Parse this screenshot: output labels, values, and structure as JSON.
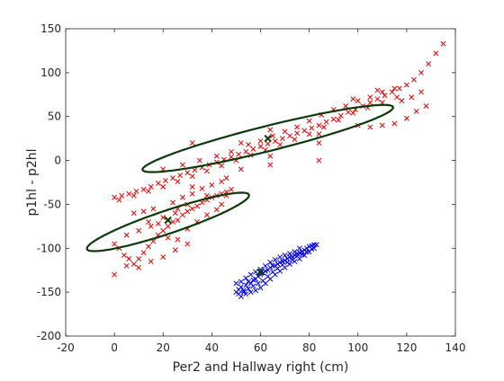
{
  "chart_data": {
    "type": "scatter",
    "title": "",
    "xlabel": "Per2 and Hallway right (cm)",
    "ylabel": "p1hl - p2hl",
    "xlim": [
      -20,
      140
    ],
    "ylim": [
      -200,
      150
    ],
    "xticks": [
      -20,
      0,
      20,
      40,
      60,
      80,
      100,
      120,
      140
    ],
    "yticks": [
      150,
      100,
      50,
      0,
      -50,
      -100,
      -150,
      -200
    ],
    "xtick_labels": [
      "-20",
      "0",
      "20",
      "40",
      "60",
      "80",
      "100",
      "120",
      "140"
    ],
    "ytick_labels": [
      "150",
      "100",
      "50",
      "0",
      "-50",
      "-100",
      "-150",
      "-200"
    ],
    "grid": false,
    "legend": "none",
    "colors": {
      "cluster_red": "#e00000",
      "cluster_blue": "#0000e0",
      "ellipse": "#0a3a0a",
      "axes": "#262626"
    },
    "series": [
      {
        "marker": "x",
        "color": "#e00000",
        "points": [
          [
            0,
            -42
          ],
          [
            3,
            -40
          ],
          [
            6,
            -38
          ],
          [
            9,
            -35
          ],
          [
            12,
            -33
          ],
          [
            15,
            -30
          ],
          [
            18,
            -26
          ],
          [
            21,
            -23
          ],
          [
            24,
            -20
          ],
          [
            27,
            -17
          ],
          [
            30,
            -14
          ],
          [
            33,
            -11
          ],
          [
            36,
            -8
          ],
          [
            39,
            -5
          ],
          [
            42,
            -2
          ],
          [
            45,
            1
          ],
          [
            48,
            4
          ],
          [
            51,
            7
          ],
          [
            54,
            10
          ],
          [
            57,
            13
          ],
          [
            60,
            16
          ],
          [
            63,
            19
          ],
          [
            66,
            22
          ],
          [
            69,
            25
          ],
          [
            72,
            28
          ],
          [
            75,
            31
          ],
          [
            78,
            34
          ],
          [
            81,
            37
          ],
          [
            84,
            40
          ],
          [
            87,
            44
          ],
          [
            90,
            47
          ],
          [
            93,
            51
          ],
          [
            96,
            55
          ],
          [
            99,
            58
          ],
          [
            102,
            62
          ],
          [
            105,
            66
          ],
          [
            108,
            70
          ],
          [
            111,
            74
          ],
          [
            114,
            78
          ],
          [
            117,
            82
          ],
          [
            120,
            86
          ],
          [
            123,
            92
          ],
          [
            126,
            100
          ],
          [
            129,
            110
          ],
          [
            132,
            122
          ],
          [
            135,
            133
          ],
          [
            2,
            -45
          ],
          [
            8,
            -40
          ],
          [
            14,
            -35
          ],
          [
            20,
            -30
          ],
          [
            26,
            -24
          ],
          [
            32,
            -18
          ],
          [
            38,
            -12
          ],
          [
            44,
            -6
          ],
          [
            50,
            0
          ],
          [
            56,
            6
          ],
          [
            62,
            12
          ],
          [
            68,
            18
          ],
          [
            74,
            24
          ],
          [
            80,
            30
          ],
          [
            86,
            38
          ],
          [
            92,
            46
          ],
          [
            98,
            54
          ],
          [
            104,
            60
          ],
          [
            110,
            66
          ],
          [
            116,
            72
          ],
          [
            20,
            -10
          ],
          [
            28,
            -5
          ],
          [
            35,
            0
          ],
          [
            42,
            5
          ],
          [
            48,
            10
          ],
          [
            55,
            18
          ],
          [
            60,
            22
          ],
          [
            65,
            28
          ],
          [
            70,
            33
          ],
          [
            75,
            38
          ],
          [
            80,
            45
          ],
          [
            85,
            52
          ],
          [
            90,
            58
          ],
          [
            95,
            62
          ],
          [
            100,
            68
          ],
          [
            105,
            72
          ],
          [
            110,
            78
          ],
          [
            115,
            82
          ],
          [
            98,
            70
          ],
          [
            108,
            80
          ],
          [
            84,
            20
          ],
          [
            84,
            0
          ],
          [
            84,
            30
          ],
          [
            64,
            5
          ],
          [
            64,
            -5
          ],
          [
            64,
            35
          ],
          [
            52,
            20
          ],
          [
            52,
            -10
          ],
          [
            32,
            20
          ],
          [
            32,
            -30
          ],
          [
            100,
            40
          ],
          [
            105,
            38
          ],
          [
            110,
            40
          ],
          [
            115,
            42
          ],
          [
            120,
            48
          ],
          [
            124,
            56
          ],
          [
            128,
            62
          ],
          [
            118,
            68
          ],
          [
            122,
            72
          ],
          [
            126,
            78
          ],
          [
            24,
            -48
          ],
          [
            28,
            -42
          ],
          [
            32,
            -38
          ],
          [
            36,
            -32
          ],
          [
            40,
            -28
          ],
          [
            44,
            -24
          ],
          [
            46,
            -20
          ],
          [
            38,
            -40
          ],
          [
            30,
            -50
          ],
          [
            26,
            -55
          ],
          [
            0,
            -95
          ],
          [
            2,
            -100
          ],
          [
            4,
            -108
          ],
          [
            6,
            -112
          ],
          [
            8,
            -118
          ],
          [
            10,
            -112
          ],
          [
            12,
            -105
          ],
          [
            14,
            -98
          ],
          [
            16,
            -92
          ],
          [
            18,
            -85
          ],
          [
            20,
            -80
          ],
          [
            22,
            -75
          ],
          [
            24,
            -70
          ],
          [
            26,
            -68
          ],
          [
            28,
            -62
          ],
          [
            30,
            -58
          ],
          [
            32,
            -55
          ],
          [
            34,
            -52
          ],
          [
            36,
            -48
          ],
          [
            38,
            -45
          ],
          [
            40,
            -42
          ],
          [
            42,
            -40
          ],
          [
            44,
            -38
          ],
          [
            46,
            -36
          ],
          [
            48,
            -33
          ],
          [
            5,
            -85
          ],
          [
            10,
            -80
          ],
          [
            15,
            -75
          ],
          [
            20,
            -65
          ],
          [
            25,
            -60
          ],
          [
            8,
            -60
          ],
          [
            12,
            -58
          ],
          [
            16,
            -55
          ],
          [
            14,
            -70
          ],
          [
            18,
            -72
          ],
          [
            22,
            -88
          ],
          [
            26,
            -90
          ],
          [
            30,
            -78
          ],
          [
            34,
            -70
          ],
          [
            38,
            -62
          ],
          [
            42,
            -56
          ],
          [
            44,
            -50
          ],
          [
            10,
            -122
          ],
          [
            5,
            -120
          ],
          [
            15,
            -115
          ],
          [
            20,
            -110
          ],
          [
            25,
            -102
          ],
          [
            30,
            -95
          ],
          [
            0,
            -130
          ],
          [
            46,
            -40
          ]
        ]
      },
      {
        "marker": "x",
        "color": "#0000e0",
        "points": [
          [
            50,
            -150
          ],
          [
            51,
            -147
          ],
          [
            52,
            -144
          ],
          [
            53,
            -148
          ],
          [
            54,
            -142
          ],
          [
            55,
            -138
          ],
          [
            56,
            -140
          ],
          [
            57,
            -136
          ],
          [
            58,
            -135
          ],
          [
            59,
            -132
          ],
          [
            60,
            -130
          ],
          [
            61,
            -128
          ],
          [
            62,
            -126
          ],
          [
            63,
            -125
          ],
          [
            64,
            -122
          ],
          [
            65,
            -120
          ],
          [
            66,
            -120
          ],
          [
            67,
            -118
          ],
          [
            68,
            -116
          ],
          [
            69,
            -115
          ],
          [
            70,
            -114
          ],
          [
            71,
            -112
          ],
          [
            72,
            -110
          ],
          [
            73,
            -110
          ],
          [
            74,
            -108
          ],
          [
            75,
            -106
          ],
          [
            76,
            -105
          ],
          [
            77,
            -104
          ],
          [
            78,
            -102
          ],
          [
            79,
            -100
          ],
          [
            80,
            -98
          ],
          [
            81,
            -97
          ],
          [
            82,
            -96
          ],
          [
            83,
            -96
          ],
          [
            52,
            -155
          ],
          [
            54,
            -152
          ],
          [
            56,
            -150
          ],
          [
            58,
            -148
          ],
          [
            60,
            -145
          ],
          [
            62,
            -140
          ],
          [
            64,
            -135
          ],
          [
            66,
            -130
          ],
          [
            68,
            -126
          ],
          [
            70,
            -122
          ],
          [
            72,
            -118
          ],
          [
            74,
            -115
          ],
          [
            76,
            -112
          ],
          [
            78,
            -108
          ],
          [
            80,
            -104
          ],
          [
            82,
            -100
          ],
          [
            50,
            -140
          ],
          [
            52,
            -138
          ],
          [
            54,
            -134
          ],
          [
            56,
            -130
          ],
          [
            58,
            -127
          ],
          [
            60,
            -124
          ],
          [
            62,
            -120
          ],
          [
            64,
            -116
          ],
          [
            66,
            -113
          ],
          [
            68,
            -110
          ],
          [
            70,
            -108
          ],
          [
            72,
            -106
          ],
          [
            74,
            -104
          ],
          [
            76,
            -100
          ],
          [
            51,
            -152
          ],
          [
            53,
            -150
          ],
          [
            55,
            -146
          ],
          [
            57,
            -143
          ],
          [
            59,
            -140
          ],
          [
            61,
            -137
          ],
          [
            63,
            -132
          ],
          [
            65,
            -127
          ],
          [
            67,
            -123
          ],
          [
            69,
            -119
          ],
          [
            71,
            -116
          ],
          [
            73,
            -113
          ],
          [
            75,
            -109
          ],
          [
            77,
            -107
          ],
          [
            79,
            -104
          ],
          [
            81,
            -101
          ]
        ]
      }
    ],
    "ellipses": [
      {
        "center": [
          63,
          25
        ],
        "a": 63,
        "b": 12,
        "angle_deg": 36
      },
      {
        "center": [
          22,
          -70
        ],
        "a": 46,
        "b": 10,
        "angle_deg": 45
      }
    ],
    "centers": [
      [
        63,
        25
      ],
      [
        22,
        -68
      ],
      [
        60,
        -127
      ]
    ]
  }
}
